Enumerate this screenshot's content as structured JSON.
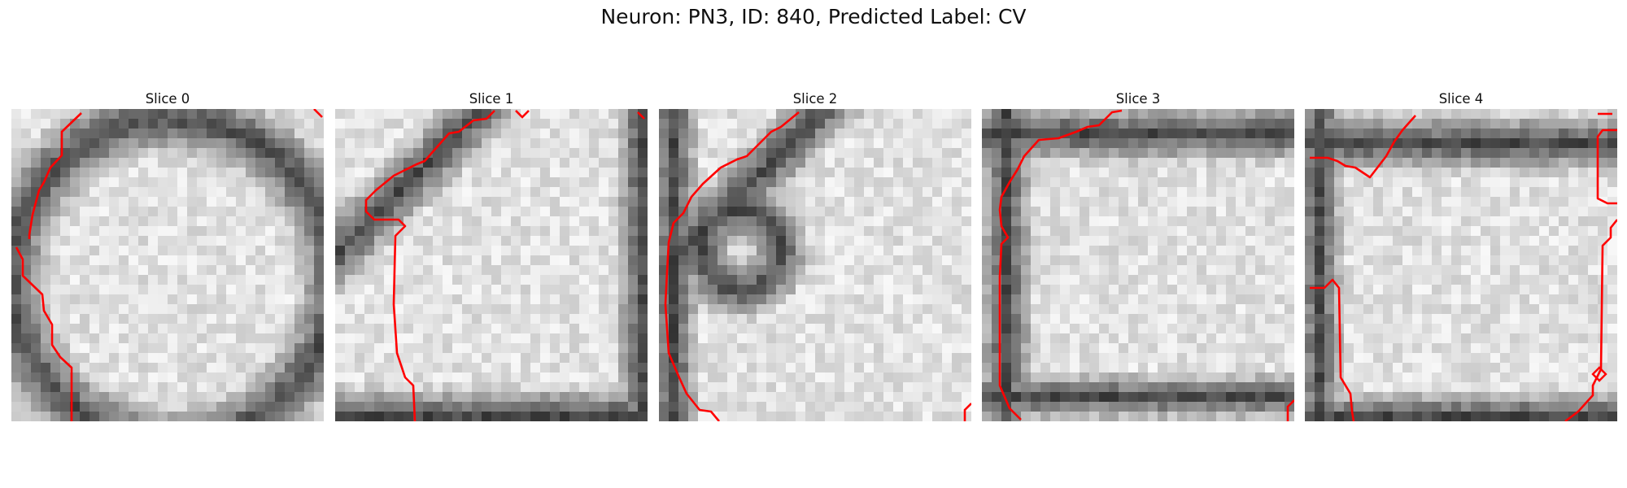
{
  "figure": {
    "title": "Neuron: PN3, ID: 840, Predicted Label: CV"
  },
  "panels": [
    {
      "title": "Slice 0"
    },
    {
      "title": "Slice 1"
    },
    {
      "title": "Slice 2"
    },
    {
      "title": "Slice 3"
    },
    {
      "title": "Slice 4"
    }
  ],
  "style": {
    "contour_color": "#ff0000",
    "colormap": "grayscale"
  }
}
